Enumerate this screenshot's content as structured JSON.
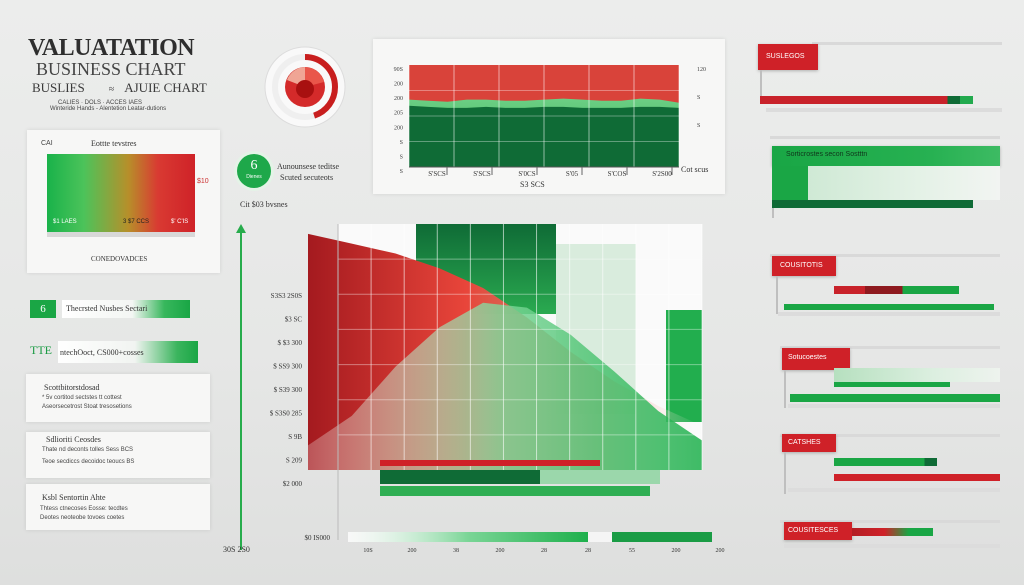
{
  "header": {
    "title": "VALUATATION",
    "subtitle": "BUSINESS CHART",
    "line3_left": "BUSLIES",
    "line3_sep": "≈",
    "line3_right": "AJUIE CHART",
    "line4": "CALIES · DOLS · ACCES IAES",
    "line5": "Winteride Hands - Alentetion Leatar-dutions"
  },
  "gauge": {
    "fill_fraction": 0.45,
    "colors": [
      "#c82020",
      "#e84c3c",
      "#f2a090"
    ]
  },
  "left_panel": {
    "label_top": "CAI",
    "title": "Eottte tevstres",
    "value_right": "$10",
    "label_a": "$1 LAES",
    "label_b": "3 $7 CCS",
    "label_c": "$' C'IS",
    "caption": "CONEDOVADCES"
  },
  "badge": {
    "value": "6",
    "caption": "Dienes",
    "text1": "Aunounsese teditse",
    "text2": "Scuted secuteots"
  },
  "cell_label": "Cit $03 bvsnes",
  "left_rows": [
    {
      "icon": "6",
      "text": "Thecrsted Nusbes Sectari"
    },
    {
      "icon": "TTE",
      "text": "ntechOoct, CS000+cosses"
    }
  ],
  "left_cards": [
    {
      "title": "Scottbitorstdosad",
      "text1": "* 5v cortitod sectstes tt cottest",
      "text2": "Aseorsecetrost Stoat tresosetions"
    },
    {
      "title": "Sdlioriti Ceosdes",
      "text1": "Thate nd deconts tolles Sess BCS",
      "text2": "Teoe secdiccs decoidoc teoucs BS"
    },
    {
      "title": "Ksbl Sentortin Ahte",
      "text1": "Thtess ctnecoses Eosse: tecdtes",
      "text2": "Deotes neoteobe tovoes coetes"
    }
  ],
  "left_axis_label": "30S 2S0",
  "top_chart": {
    "y_ticks": [
      "90S",
      "200",
      "200",
      "205",
      "200",
      "S",
      "S",
      "S"
    ],
    "right_ticks": [
      "120",
      "S",
      "S"
    ],
    "x_labels": [
      "S'SCS",
      "S'SCS",
      "S'0CS",
      "S'05",
      "S'COS",
      "S'2S00"
    ],
    "x_title": "S3 SCS",
    "right_label": "Cot scus",
    "bands": [
      {
        "name": "top",
        "color": "#d9433a"
      },
      {
        "name": "middle",
        "color": "#35b255"
      },
      {
        "name": "bottom",
        "color": "#0f6b36"
      }
    ]
  },
  "main_chart": {
    "y_ticks": [
      "S3S3 2S0S",
      "$3 SC",
      "$ $3 300",
      "$ SS9 300",
      "$ S39 300",
      "$ S3S0 285",
      "S 9B",
      "S 209",
      "$2 000"
    ],
    "bottom_label": "$0 IS000",
    "x_ticks": [
      "10S",
      "200",
      "38",
      "200",
      "28",
      "28",
      "55",
      "200",
      "200"
    ]
  },
  "right_rows": [
    {
      "label": "SUSLEGOS",
      "type": "red"
    },
    {
      "label": "Sorticrostes secon Sostttn",
      "type": "green"
    },
    {
      "label": "COUSITOTIS",
      "type": "red"
    },
    {
      "label": "Sotucoestes",
      "type": "red"
    },
    {
      "label": "CATSHES",
      "type": "red"
    },
    {
      "label": "COUSITESCES",
      "type": "red"
    }
  ],
  "chart_data": [
    {
      "type": "area",
      "series": [
        {
          "name": "",
          "values": [
            34,
            35,
            36,
            34,
            34,
            35,
            35,
            34,
            33,
            34,
            35,
            35,
            33,
            34,
            37
          ]
        },
        {
          "name": "",
          "values": [
            68,
            69,
            70,
            70,
            69,
            70,
            70,
            69,
            69,
            70,
            70,
            70,
            69,
            69,
            70
          ]
        }
      ],
      "x": [
        1,
        2,
        3,
        4,
        5,
        6,
        7,
        8,
        9,
        10,
        11,
        12,
        13,
        14,
        15
      ],
      "title": "",
      "xlabel": "S3 SCS",
      "ylabel": "",
      "ylim": [
        0,
        100
      ],
      "grid": true
    },
    {
      "type": "area",
      "series": [
        {
          "name": "",
          "values": [
            96,
            92,
            88,
            82,
            74,
            62,
            48,
            36,
            26,
            18
          ]
        },
        {
          "name": "",
          "values": [
            10,
            22,
            42,
            58,
            68,
            66,
            55,
            40,
            24,
            12
          ]
        }
      ],
      "x": [
        1,
        2,
        3,
        4,
        5,
        6,
        7,
        8,
        9,
        10
      ],
      "title": "",
      "xlabel": "",
      "ylabel": "",
      "ylim": [
        0,
        100
      ],
      "grid": true
    },
    {
      "type": "bar",
      "categories": [
        "SUSLEGOS",
        "Sorticrostes secon Sostttn",
        "COUSITOTIS",
        "Sotucoestes",
        "CATSHES",
        "COUSITESCES"
      ],
      "values": [
        92,
        88,
        78,
        70,
        62,
        55
      ],
      "title": "",
      "xlabel": "",
      "ylabel": "",
      "ylim": [
        0,
        100
      ]
    }
  ]
}
